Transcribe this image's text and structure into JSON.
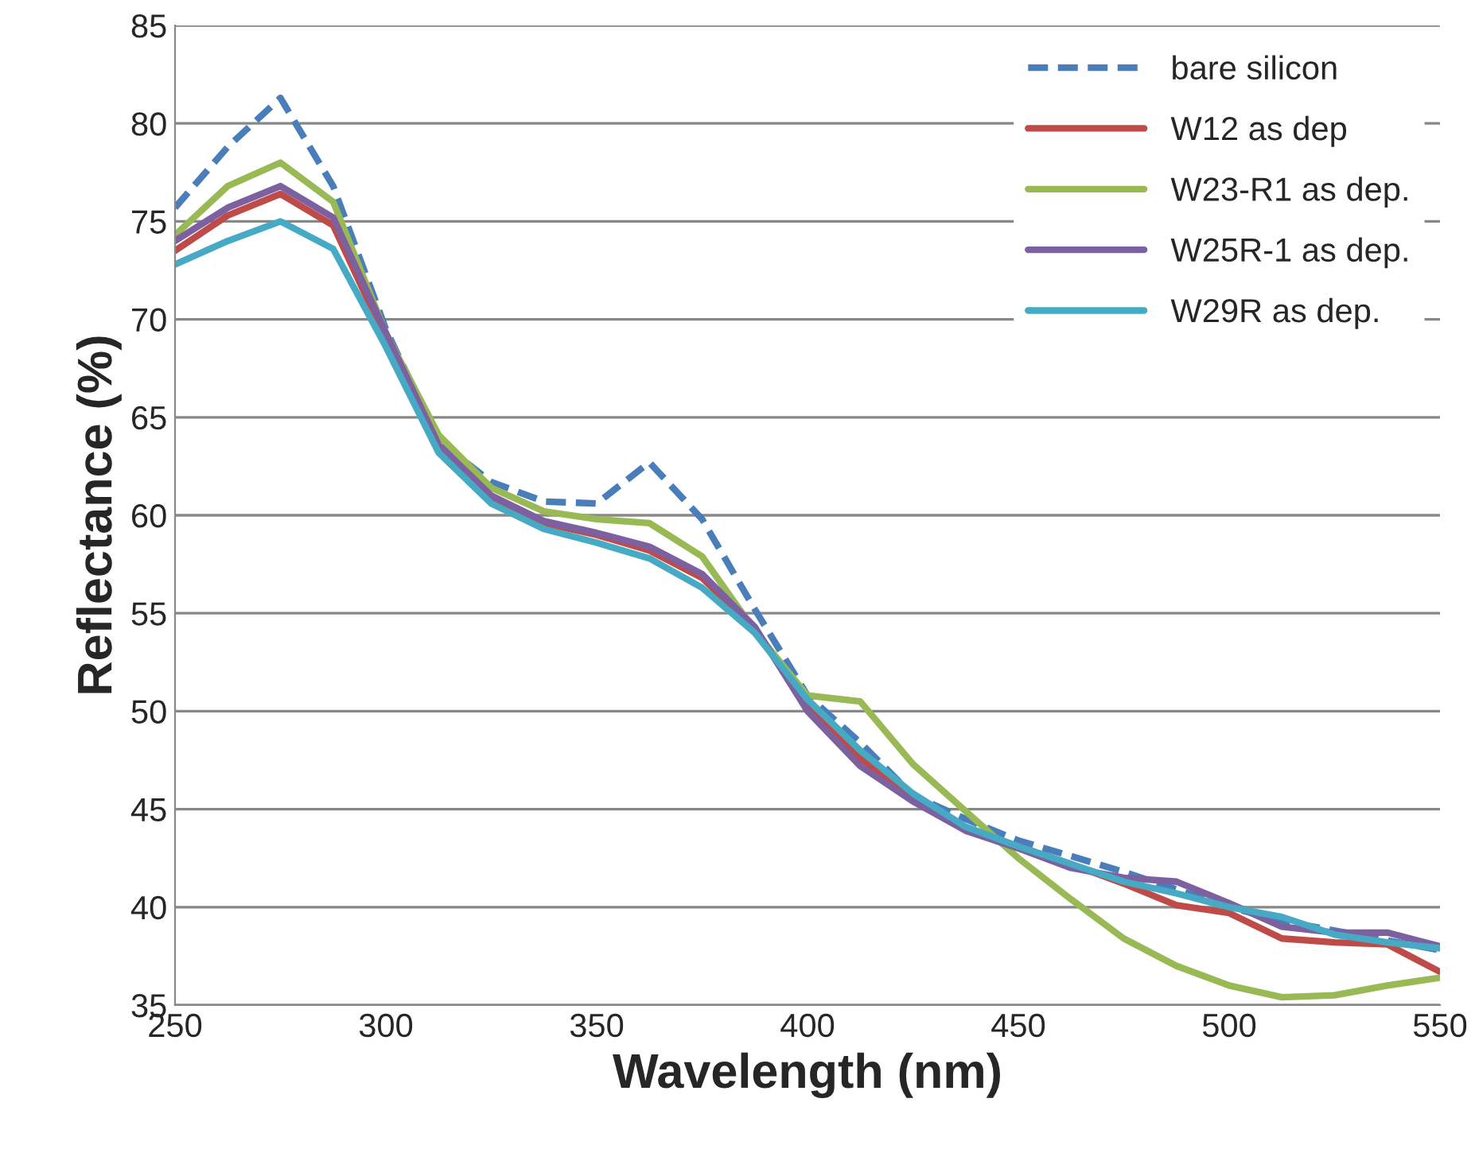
{
  "chart_data": {
    "type": "line",
    "xlabel": "Wavelength (nm)",
    "ylabel": "Reflectance (%)",
    "x": [
      250,
      262.5,
      275,
      287.5,
      300,
      312.5,
      325,
      337.5,
      350,
      362.5,
      375,
      387.5,
      400,
      412.5,
      425,
      437.5,
      450,
      462.5,
      475,
      487.5,
      500,
      512.5,
      525,
      537.5,
      550
    ],
    "series": [
      {
        "name": "bare silicon",
        "color": "#4a7ebb",
        "line_style": "dashed",
        "values": [
          75.7,
          78.8,
          81.3,
          76.8,
          69.5,
          63.8,
          61.7,
          60.7,
          60.6,
          62.7,
          59.8,
          55.2,
          50.8,
          48.4,
          45.7,
          44.5,
          43.4,
          42.6,
          41.8,
          40.9,
          40.0,
          39.3,
          38.8,
          38.3,
          37.8
        ]
      },
      {
        "name": "W12 as dep",
        "color": "#be4b48",
        "line_style": "solid",
        "values": [
          73.5,
          75.3,
          76.4,
          74.8,
          69.0,
          63.5,
          60.9,
          59.6,
          59.0,
          58.2,
          56.8,
          54.2,
          50.2,
          47.6,
          45.7,
          44.0,
          43.1,
          42.2,
          41.2,
          40.1,
          39.7,
          38.4,
          38.2,
          38.1,
          36.7
        ]
      },
      {
        "name": "W23-R1 as dep.",
        "color": "#98b954",
        "line_style": "solid",
        "values": [
          74.3,
          76.8,
          78.0,
          76.0,
          69.3,
          64.1,
          61.4,
          60.2,
          59.8,
          59.6,
          57.9,
          54.1,
          50.8,
          50.5,
          47.3,
          44.9,
          42.5,
          40.4,
          38.4,
          37.0,
          36.0,
          35.4,
          35.5,
          36.0,
          36.4
        ]
      },
      {
        "name": "W25R-1 as dep.",
        "color": "#7d60a0",
        "line_style": "solid",
        "values": [
          74.0,
          75.7,
          76.8,
          75.2,
          69.3,
          63.6,
          61.0,
          59.7,
          59.1,
          58.4,
          57.0,
          54.3,
          50.0,
          47.2,
          45.4,
          43.9,
          43.0,
          42.0,
          41.5,
          41.3,
          40.2,
          39.0,
          38.7,
          38.7,
          38.0
        ]
      },
      {
        "name": "W29R as dep.",
        "color": "#46aac5",
        "line_style": "solid",
        "values": [
          72.8,
          74.0,
          75.0,
          73.6,
          68.6,
          63.2,
          60.6,
          59.3,
          58.6,
          57.8,
          56.3,
          54.0,
          50.6,
          48.0,
          45.8,
          44.1,
          43.1,
          42.2,
          41.3,
          40.7,
          40.0,
          39.5,
          38.6,
          38.2,
          37.9
        ]
      }
    ],
    "xlim": [
      250,
      550
    ],
    "xticks": [
      250,
      300,
      350,
      400,
      450,
      500,
      550
    ],
    "ylim": [
      35,
      85
    ],
    "yticks": [
      35,
      40,
      45,
      50,
      55,
      60,
      65,
      70,
      75,
      80,
      85
    ],
    "grid": "y",
    "legend": "top right"
  }
}
